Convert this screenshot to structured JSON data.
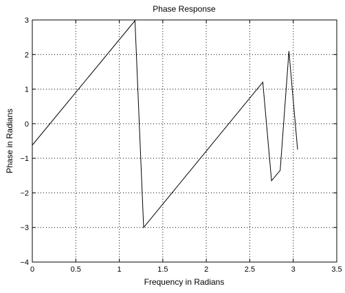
{
  "chart_data": {
    "type": "line",
    "title": "Phase Response",
    "xlabel": "Frequency in Radians",
    "ylabel": "Phase in Radians",
    "xlim": [
      0,
      3.5
    ],
    "ylim": [
      -4,
      3
    ],
    "xticks": [
      "0",
      "0.5",
      "1",
      "1.5",
      "2",
      "2.5",
      "3",
      "3.5"
    ],
    "yticks": [
      "3",
      "2",
      "1",
      "0",
      "−1",
      "−2",
      "−3",
      "−4"
    ],
    "grid": true,
    "series": [
      {
        "x": [
          0,
          1.18,
          1.28,
          2.65,
          2.75,
          2.85,
          2.95,
          3.05
        ],
        "y": [
          -0.62,
          2.98,
          -3.0,
          1.2,
          -1.65,
          -1.35,
          2.1,
          -0.75
        ]
      }
    ],
    "line_color": "#000000"
  }
}
